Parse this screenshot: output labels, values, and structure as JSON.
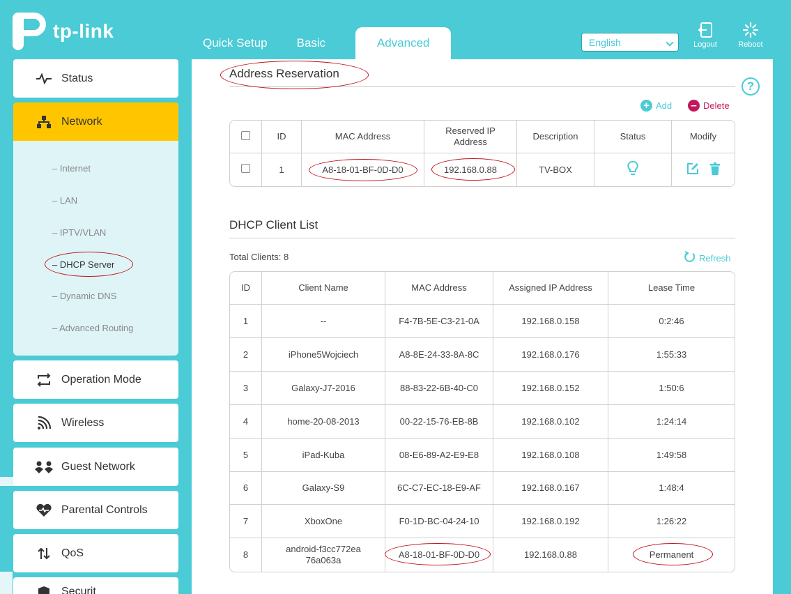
{
  "brand": {
    "name": "tp-link"
  },
  "tabs": [
    {
      "label": "Quick Setup"
    },
    {
      "label": "Basic"
    },
    {
      "label": "Advanced"
    }
  ],
  "header": {
    "language": "English",
    "logout_label": "Logout",
    "reboot_label": "Reboot"
  },
  "sidebar": {
    "items": [
      {
        "label": "Status",
        "icon": "pulse-icon"
      },
      {
        "label": "Network",
        "icon": "network-icon"
      },
      {
        "label": "Operation Mode",
        "icon": "operation-mode-icon"
      },
      {
        "label": "Wireless",
        "icon": "wifi-icon"
      },
      {
        "label": "Guest Network",
        "icon": "guest-icon"
      },
      {
        "label": "Parental Controls",
        "icon": "heart-icon"
      },
      {
        "label": "QoS",
        "icon": "qos-icon"
      },
      {
        "label": "Securit",
        "icon": "shield-icon"
      }
    ],
    "subitems": [
      {
        "label": "– Internet"
      },
      {
        "label": "– LAN"
      },
      {
        "label": "– IPTV/VLAN"
      },
      {
        "label": "– DHCP Server"
      },
      {
        "label": "– Dynamic DNS"
      },
      {
        "label": "– Advanced Routing"
      }
    ]
  },
  "reservation": {
    "title": "Address Reservation",
    "add_label": "Add",
    "delete_label": "Delete",
    "headers": {
      "id": "ID",
      "mac": "MAC Address",
      "ip": "Reserved IP Address",
      "desc": "Description",
      "status": "Status",
      "modify": "Modify"
    },
    "rows": [
      {
        "id": "1",
        "mac": "A8-18-01-BF-0D-D0",
        "ip": "192.168.0.88",
        "desc": "TV-BOX"
      }
    ]
  },
  "dhcp": {
    "title": "DHCP Client List",
    "total_label": "Total Clients: 8",
    "refresh_label": "Refresh",
    "headers": {
      "id": "ID",
      "name": "Client Name",
      "mac": "MAC Address",
      "ip": "Assigned IP Address",
      "lease": "Lease Time"
    },
    "rows": [
      {
        "id": "1",
        "name": "--",
        "mac": "F4-7B-5E-C3-21-0A",
        "ip": "192.168.0.158",
        "lease": "0:2:46"
      },
      {
        "id": "2",
        "name": "iPhone5Wojciech",
        "mac": "A8-8E-24-33-8A-8C",
        "ip": "192.168.0.176",
        "lease": "1:55:33"
      },
      {
        "id": "3",
        "name": "Galaxy-J7-2016",
        "mac": "88-83-22-6B-40-C0",
        "ip": "192.168.0.152",
        "lease": "1:50:6"
      },
      {
        "id": "4",
        "name": "home-20-08-2013",
        "mac": "00-22-15-76-EB-8B",
        "ip": "192.168.0.102",
        "lease": "1:24:14"
      },
      {
        "id": "5",
        "name": "iPad-Kuba",
        "mac": "08-E6-89-A2-E9-E8",
        "ip": "192.168.0.108",
        "lease": "1:49:58"
      },
      {
        "id": "6",
        "name": "Galaxy-S9",
        "mac": "6C-C7-EC-18-E9-AF",
        "ip": "192.168.0.167",
        "lease": "1:48:4"
      },
      {
        "id": "7",
        "name": "XboxOne",
        "mac": "F0-1D-BC-04-24-10",
        "ip": "192.168.0.192",
        "lease": "1:26:22"
      },
      {
        "id": "8",
        "name": "android-f3cc772ea76a063a",
        "mac": "A8-18-01-BF-0D-D0",
        "ip": "192.168.0.88",
        "lease": "Permanent"
      }
    ]
  },
  "colors": {
    "accent": "#4acbd6",
    "active_nav": "#ffc600",
    "delete": "#c2185b",
    "annotation": "#c0131a"
  }
}
